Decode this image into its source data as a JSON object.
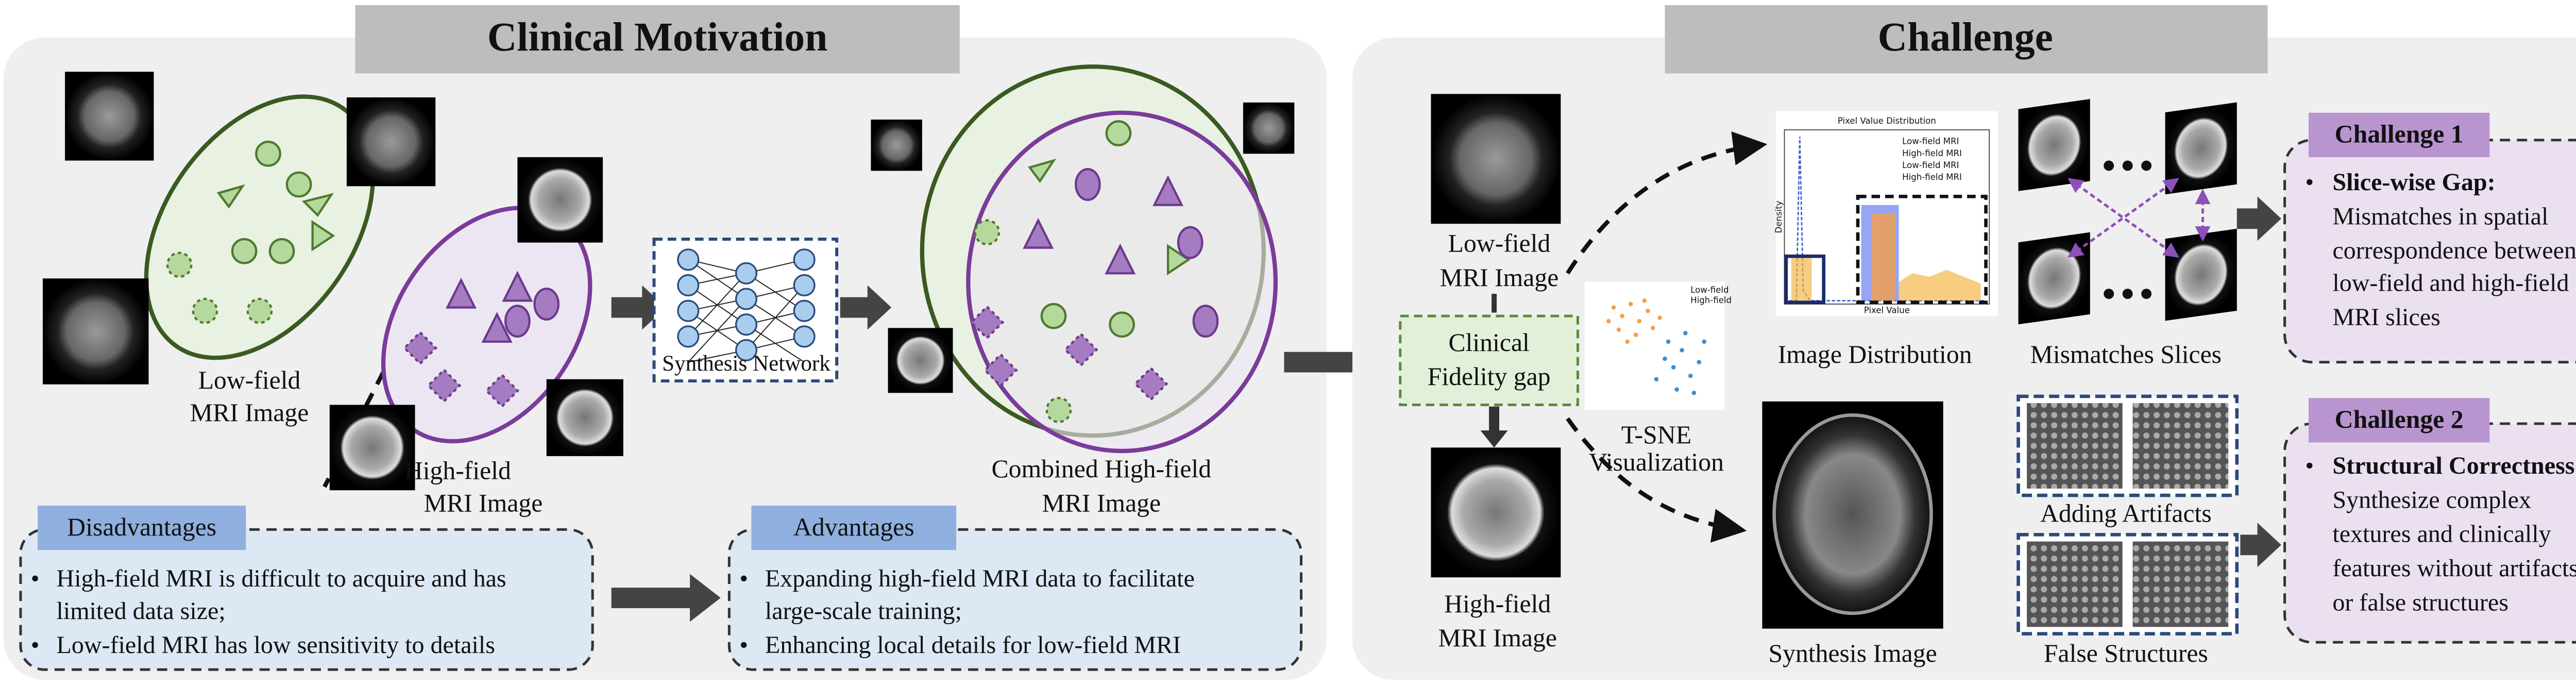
{
  "left_panel": {
    "title": "Clinical Motivation",
    "low_field_label": [
      "Low-field",
      "MRI Image"
    ],
    "high_field_label": [
      "High-field",
      "MRI Image"
    ],
    "network_label": "Synthesis Network",
    "combined_label": [
      "Combined High-field",
      "MRI Image"
    ],
    "disadvantages": {
      "title": "Disadvantages",
      "lines": [
        "High-field MRI is difficult to acquire and has",
        "limited data size;",
        "Low-field MRI has low sensitivity to details"
      ]
    },
    "advantages": {
      "title": "Advantages",
      "lines": [
        "Expanding high-field MRI data to facilitate",
        "large-scale training;",
        "Enhancing local details for low-field MRI"
      ]
    }
  },
  "right_panel": {
    "title": "Challenge",
    "low_field_label": [
      "Low-field",
      "MRI Image"
    ],
    "gap_label": [
      "Clinical",
      "Fidelity gap"
    ],
    "high_field_label": [
      "High-field",
      "MRI Image"
    ],
    "tsne": {
      "label": [
        "T-SNE",
        "Visualization"
      ],
      "legend": [
        "Low-field",
        "High-field"
      ]
    },
    "histogram": {
      "title": "Pixel Value Distribution",
      "legend": [
        "Low-field MRI",
        "High-field MRI",
        "Low-field MRI",
        "High-field MRI"
      ],
      "x_label": "Pixel Value",
      "y_label": "Density",
      "caption": "Image Distribution"
    },
    "slices_caption": "Mismatches Slices",
    "synthesis_caption": "Synthesis Image",
    "artifacts_caption": "Adding Artifacts",
    "false_caption": "False Structures",
    "challenge1": {
      "title": "Challenge 1",
      "heading": "Slice-wise Gap:",
      "lines": [
        "Mismatches in spatial",
        "correspondence between",
        "low-field and high-field",
        "MRI slices"
      ]
    },
    "challenge2": {
      "title": "Challenge 2",
      "heading": "Structural Correctness:",
      "lines": [
        "Synthesize complex",
        "textures and clinically",
        "features without artifacts",
        "or false structures"
      ]
    }
  }
}
